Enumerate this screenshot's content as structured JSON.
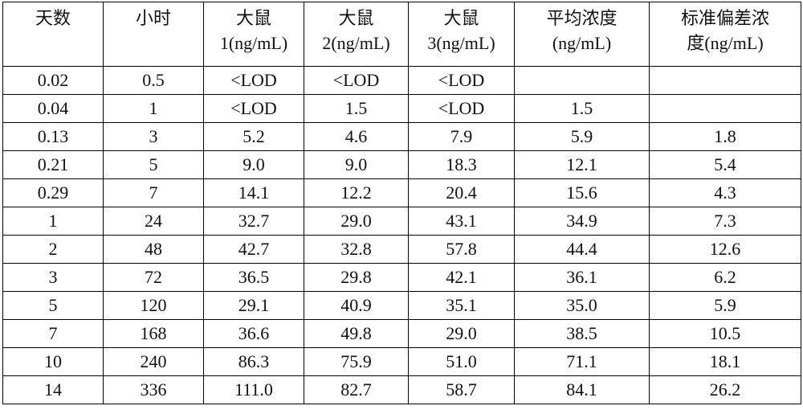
{
  "table": {
    "header": [
      [
        "天数"
      ],
      [
        "小时"
      ],
      [
        "大鼠",
        "1(ng/mL)"
      ],
      [
        "大鼠",
        "2(ng/mL)"
      ],
      [
        "大鼠",
        "3(ng/mL)"
      ],
      [
        "平均浓度",
        "(ng/mL)"
      ],
      [
        "标准偏差浓",
        "度(ng/mL)"
      ]
    ],
    "rows": [
      [
        "0.02",
        "0.5",
        "<LOD",
        "<LOD",
        "<LOD",
        null,
        null
      ],
      [
        "0.04",
        "1",
        "<LOD",
        "1.5",
        "<LOD",
        "1.5",
        null
      ],
      [
        "0.13",
        "3",
        "5.2",
        "4.6",
        "7.9",
        "5.9",
        "1.8"
      ],
      [
        "0.21",
        "5",
        "9.0",
        "9.0",
        "18.3",
        "12.1",
        "5.4"
      ],
      [
        "0.29",
        "7",
        "14.1",
        "12.2",
        "20.4",
        "15.6",
        "4.3"
      ],
      [
        "1",
        "24",
        "32.7",
        "29.0",
        "43.1",
        "34.9",
        "7.3"
      ],
      [
        "2",
        "48",
        "42.7",
        "32.8",
        "57.8",
        "44.4",
        "12.6"
      ],
      [
        "3",
        "72",
        "36.5",
        "29.8",
        "42.1",
        "36.1",
        "6.2"
      ],
      [
        "5",
        "120",
        "29.1",
        "40.9",
        "35.1",
        "35.0",
        "5.9"
      ],
      [
        "7",
        "168",
        "36.6",
        "49.8",
        "29.0",
        "38.5",
        "10.5"
      ],
      [
        "10",
        "240",
        "86.3",
        "75.9",
        "51.0",
        "71.1",
        "18.1"
      ],
      [
        "14",
        "336",
        "111.0",
        "82.7",
        "58.7",
        "84.1",
        "26.2"
      ]
    ]
  }
}
